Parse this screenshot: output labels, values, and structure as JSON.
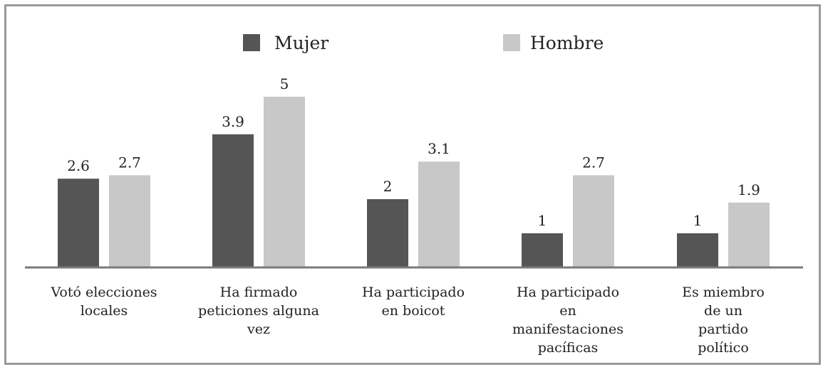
{
  "chart_data": {
    "type": "bar",
    "categories": [
      [
        "Votó elecciones",
        "locales"
      ],
      [
        "Ha firmado",
        "peticiones alguna",
        "vez"
      ],
      [
        "Ha participado",
        "en boicot"
      ],
      [
        "Ha participado",
        "en",
        "manifestaciones",
        "pacíficas"
      ],
      [
        "Es miembro",
        "de un",
        "partido",
        "político"
      ]
    ],
    "series": [
      {
        "name": "Mujer",
        "values": [
          2.6,
          3.9,
          2,
          1,
          1
        ],
        "labels": [
          "2.6",
          "3.9",
          "2",
          "1",
          "1"
        ],
        "color": "#555555"
      },
      {
        "name": "Hombre",
        "values": [
          2.7,
          5,
          3.1,
          2.7,
          1.9
        ],
        "labels": [
          "2.7",
          "5",
          "3.1",
          "2.7",
          "1.9"
        ],
        "color": "#c8c8c8"
      }
    ],
    "title": "",
    "xlabel": "",
    "ylabel": "",
    "ylim": [
      0,
      5
    ],
    "grid": false,
    "legend_position": "top-center",
    "axis_color": "#7a7a7a"
  }
}
